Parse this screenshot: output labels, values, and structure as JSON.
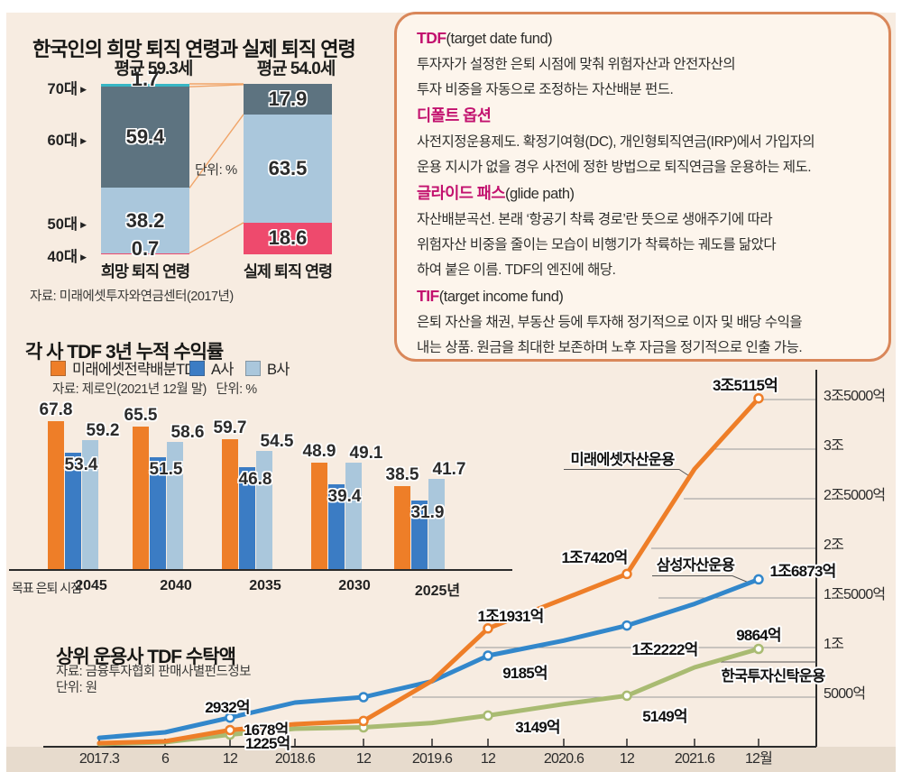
{
  "palette": {
    "background": "#f7ece1",
    "strip": "#e7dbcd",
    "box_border": "#d9875a",
    "box_fill": "#fdf5ec",
    "term_color": "#c2116e",
    "orange": "#ee7e28",
    "blue": "#3b7cc4",
    "line_blue": "#3287cb",
    "light_blue": "#aac7dc",
    "green": "#a9bb72",
    "teal": "#38b6c4",
    "slate": "#5d7380",
    "pink": "#ee4a6d",
    "connector": "#f0a468",
    "grid": "#9a9a9a",
    "axis": "#2b2b2b"
  },
  "glossary": {
    "entries": [
      {
        "term": "TDF",
        "suffix": "(target date fund)",
        "lines": [
          "투자자가 설정한 은퇴 시점에 맞춰 위험자산과 안전자산의",
          "투자 비중을 자동으로 조정하는 자산배분 펀드."
        ]
      },
      {
        "term": "디폴트 옵션",
        "suffix": "",
        "lines": [
          "사전지정운용제도. 확정기여형(DC), 개인형퇴직연금(IRP)에서 가입자의",
          "운용 지시가 없을 경우 사전에 정한 방법으로 퇴직연금을 운용하는 제도."
        ]
      },
      {
        "term": "글라이드 패스",
        "suffix": "(glide path)",
        "lines": [
          "자산배분곡선. 본래 ‘항공기 착륙 경로’란 뜻으로 생애주기에 따라",
          "위험자산 비중을 줄이는 모습이 비행기가 착륙하는 궤도를 닮았다",
          "하여 붙은 이름. TDF의 엔진에 해당."
        ]
      },
      {
        "term": "TIF",
        "suffix": "(target income fund)",
        "lines": [
          "은퇴 자산을 채권, 부동산 등에 투자해 정기적으로 이자 및 배당 수익을",
          "내는 상품. 원금을 최대한 보존하며 노후 자금을 정기적으로 인출 가능."
        ]
      }
    ]
  },
  "chart_data": [
    {
      "id": "retirement_age",
      "type": "bar",
      "variant": "stacked-percent",
      "title": "한국인의 희망 퇴직 연령과 실제 퇴직 연령",
      "unit": "단위: %",
      "source": "자료: 미래에셋투자와연금센터(2017년)",
      "age_axis": [
        "70대",
        "60대",
        "50대",
        "40대"
      ],
      "columns": [
        {
          "label": "희망 퇴직 연령",
          "average": "평균 59.3세",
          "segments": [
            {
              "age": "70대",
              "value": 1.7,
              "color": "teal"
            },
            {
              "age": "60대",
              "value": 59.4,
              "color": "slate"
            },
            {
              "age": "50대",
              "value": 38.2,
              "color": "light_blue"
            },
            {
              "age": "40대",
              "value": 0.7,
              "color": "pink"
            }
          ]
        },
        {
          "label": "실제 퇴직 연령",
          "average": "평균 54.0세",
          "segments": [
            {
              "age": "60대 이상",
              "value": 17.9,
              "color": "slate"
            },
            {
              "age": "50대",
              "value": 63.5,
              "color": "light_blue"
            },
            {
              "age": "40대",
              "value": 18.6,
              "color": "pink"
            }
          ]
        }
      ]
    },
    {
      "id": "tdf_returns",
      "type": "bar",
      "title": "각 사 TDF 3년 누적 수익률",
      "source": "자료: 제로인(2021년 12월 말)",
      "unit": "단위: %",
      "x_caption": "목표 은퇴 시점",
      "categories": [
        "2045",
        "2040",
        "2035",
        "2030",
        "2025년"
      ],
      "series": [
        {
          "name": "미래에셋전략배분TDF",
          "color": "orange",
          "values": [
            67.8,
            65.5,
            59.7,
            48.9,
            38.5
          ]
        },
        {
          "name": "A사",
          "color": "blue",
          "values": [
            53.4,
            51.5,
            46.8,
            39.4,
            31.9
          ]
        },
        {
          "name": "B사",
          "color": "light_blue",
          "values": [
            59.2,
            58.6,
            54.5,
            49.1,
            41.7
          ]
        }
      ],
      "legend_position": "top",
      "ylim": [
        0,
        70
      ]
    },
    {
      "id": "tdf_aum",
      "type": "line",
      "title": "상위 운용사 TDF 수탁액",
      "source": "자료: 금융투자협회 판매사별펀드정보",
      "unit": "단위: 원",
      "x": [
        "2017.3",
        "6",
        "12",
        "2018.6",
        "12",
        "2019.6",
        "12",
        "2020.6",
        "12",
        "2021.6",
        "12월"
      ],
      "ylim": [
        0,
        38000
      ],
      "y_ticks": [
        {
          "value": 35000,
          "label": "3조5000억"
        },
        {
          "value": 30000,
          "label": "3조"
        },
        {
          "value": 25000,
          "label": "2조5000억"
        },
        {
          "value": 20000,
          "label": "2조"
        },
        {
          "value": 15000,
          "label": "1조5000억"
        },
        {
          "value": 10000,
          "label": "1조"
        },
        {
          "value": 5000,
          "label": "5000억"
        }
      ],
      "series": [
        {
          "name": "미래에셋자산운용",
          "color": "orange",
          "values": [
            360,
            550,
            1678,
            2270,
            2600,
            6650,
            11931,
            14900,
            17420,
            28000,
            35115
          ],
          "point_labels": {
            "2": "1678억",
            "6": "1조1931억",
            "8": "1조7420억",
            "10": "3조5115억"
          }
        },
        {
          "name": "삼성자산운용",
          "color": "line_blue",
          "values": [
            900,
            1450,
            2932,
            4450,
            5000,
            6600,
            9185,
            10700,
            12222,
            14400,
            16873
          ],
          "point_labels": {
            "2": "2932억",
            "6": "9185억",
            "8": "1조2222억",
            "10": "1조6873억"
          }
        },
        {
          "name": "한국투자신탁운용",
          "color": "green",
          "values": [
            270,
            450,
            1225,
            1820,
            1950,
            2400,
            3149,
            4300,
            5149,
            8000,
            9864
          ],
          "point_labels": {
            "2": "1225억",
            "6": "3149억",
            "8": "5149억",
            "10": "9864억"
          }
        }
      ]
    }
  ]
}
